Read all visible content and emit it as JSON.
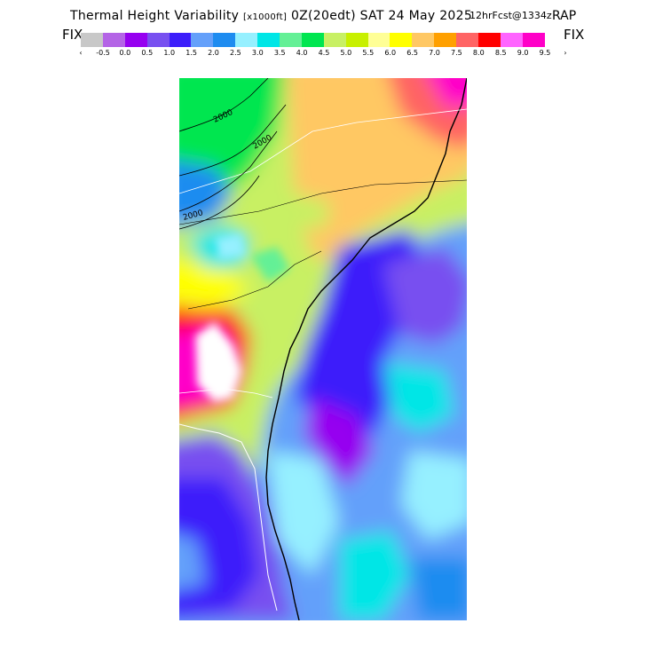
{
  "header": {
    "title": "Thermal Height Variability",
    "units": "[x1000ft]",
    "run": "0Z(20edt) SAT 24 May 2025",
    "forecast": "12hrFcst@1334z",
    "model": "RAP"
  },
  "legend": {
    "fix_left": "FIX",
    "fix_right": "FIX",
    "arrow_left": "‹",
    "arrow_right": "›",
    "colors": [
      "#c8c8c8",
      "#b464e6",
      "#9600f0",
      "#7850f0",
      "#3c1efa",
      "#64a0fa",
      "#1e8cf0",
      "#96f0ff",
      "#00e6e6",
      "#64f096",
      "#00e650",
      "#c8f064",
      "#c8f000",
      "#ffff96",
      "#ffff00",
      "#ffc864",
      "#ffa000",
      "#ff6464",
      "#ff0000",
      "#ff64ff",
      "#ff00c8"
    ],
    "ticks": [
      "-0.5",
      "0.0",
      "0.5",
      "1.0",
      "1.5",
      "2.0",
      "2.5",
      "3.0",
      "3.5",
      "4.0",
      "4.5",
      "5.0",
      "5.5",
      "6.0",
      "6.5",
      "7.0",
      "7.5",
      "8.0",
      "8.5",
      "9.0",
      "9.5"
    ]
  },
  "map": {
    "contour_labels": [
      "2000",
      "2000",
      "2000"
    ],
    "region": "Southeast US Atlantic coast"
  }
}
